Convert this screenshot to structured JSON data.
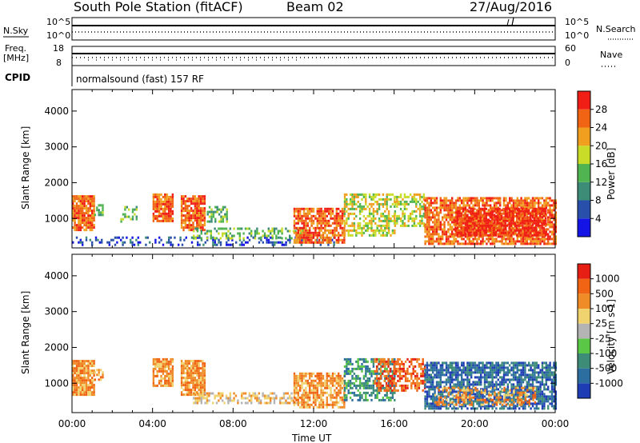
{
  "header": {
    "station": "South Pole Station (fitACF)",
    "beam": "Beam 02",
    "date": "27/Aug/2016"
  },
  "status_panels": {
    "nsky_label": "N.Sky",
    "nsky_ticks": [
      "10^5",
      "10^0"
    ],
    "nsearch_label": "N.Search",
    "nsearch_ticks": [
      "10^5",
      "10^0"
    ],
    "freq_label": "Freq.",
    "freq_unit": "[MHz]",
    "freq_ticks": [
      "18",
      "8"
    ],
    "nave_label": "Nave",
    "nave_ticks": [
      "60",
      "0"
    ],
    "cpid_label": "CPID",
    "cpid_text": "normalsound (fast) 157 RF"
  },
  "chart_data": [
    {
      "type": "heatmap",
      "name": "power",
      "ylabel": "Slant Range [km]",
      "y_ticks": [
        "1000",
        "2000",
        "3000",
        "4000"
      ],
      "ylim": [
        180,
        4600
      ],
      "xlim": [
        0,
        24
      ],
      "colorbar_title": "Power [dB]",
      "colorbar_ticks": [
        "4",
        "8",
        "12",
        "16",
        "20",
        "24",
        "28"
      ],
      "colors": [
        "#1414e6",
        "#2850aa",
        "#3c8c78",
        "#50b450",
        "#c8dc28",
        "#f0a01e",
        "#f06414",
        "#f01e14"
      ],
      "echo_regions": [
        {
          "t0": 0.0,
          "t1": 1.1,
          "r0": 700,
          "r1": 1650,
          "level": 6,
          "density": 0.9
        },
        {
          "t0": 1.1,
          "t1": 1.5,
          "r0": 1100,
          "r1": 1400,
          "level": 3,
          "density": 0.5
        },
        {
          "t0": 2.4,
          "t1": 3.2,
          "r0": 900,
          "r1": 1350,
          "level": 3,
          "density": 0.35
        },
        {
          "t0": 4.0,
          "t1": 5.0,
          "r0": 950,
          "r1": 1700,
          "level": 6,
          "density": 0.85
        },
        {
          "t0": 5.4,
          "t1": 6.6,
          "r0": 700,
          "r1": 1650,
          "level": 6,
          "density": 0.85
        },
        {
          "t0": 6.6,
          "t1": 7.7,
          "r0": 900,
          "r1": 1350,
          "level": 3,
          "density": 0.5
        },
        {
          "t0": 0.0,
          "t1": 13.0,
          "r0": 250,
          "r1": 500,
          "level": 1,
          "density": 0.3
        },
        {
          "t0": 6.0,
          "t1": 11.5,
          "r0": 450,
          "r1": 750,
          "level": 3,
          "density": 0.45
        },
        {
          "t0": 11.0,
          "t1": 13.5,
          "r0": 300,
          "r1": 1300,
          "level": 6,
          "density": 0.75
        },
        {
          "t0": 13.5,
          "t1": 16.0,
          "r0": 500,
          "r1": 1700,
          "level": 4,
          "density": 0.55
        },
        {
          "t0": 16.0,
          "t1": 17.5,
          "r0": 800,
          "r1": 1700,
          "level": 4,
          "density": 0.55
        },
        {
          "t0": 17.5,
          "t1": 24.0,
          "r0": 300,
          "r1": 1600,
          "level": 6,
          "density": 0.8
        },
        {
          "t0": 19.0,
          "t1": 23.5,
          "r0": 500,
          "r1": 1300,
          "level": 7,
          "density": 0.75
        }
      ]
    },
    {
      "type": "heatmap",
      "name": "velocity",
      "ylabel": "Slant Range [km]",
      "y_ticks": [
        "1000",
        "2000",
        "3000",
        "4000"
      ],
      "ylim": [
        180,
        4600
      ],
      "xlim": [
        0,
        24
      ],
      "x_ticks": [
        "00:00",
        "04:00",
        "08:00",
        "12:00",
        "16:00",
        "20:00",
        "00:00"
      ],
      "xlabel": "Time UT",
      "colorbar_title": "Velocity [m s-1]",
      "colorbar_ticks": [
        "1000",
        "500",
        "100",
        "25",
        "-25",
        "-100",
        "-500",
        "-1000"
      ],
      "colors": [
        "#1e3cb4",
        "#2d6ea0",
        "#3c8c78",
        "#5ac846",
        "#b4b4b4",
        "#f0d26e",
        "#f08c28",
        "#f06414",
        "#e61e14"
      ],
      "echo_regions": [
        {
          "t0": 0.0,
          "t1": 1.1,
          "r0": 700,
          "r1": 1650,
          "level": 6,
          "density": 0.9
        },
        {
          "t0": 1.1,
          "t1": 1.5,
          "r0": 1100,
          "r1": 1400,
          "level": 6,
          "density": 0.5
        },
        {
          "t0": 4.0,
          "t1": 5.0,
          "r0": 950,
          "r1": 1700,
          "level": 6,
          "density": 0.85
        },
        {
          "t0": 5.4,
          "t1": 6.6,
          "r0": 700,
          "r1": 1650,
          "level": 6,
          "density": 0.85
        },
        {
          "t0": 6.0,
          "t1": 11.5,
          "r0": 450,
          "r1": 750,
          "level": 5,
          "density": 0.5
        },
        {
          "t0": 11.0,
          "t1": 13.5,
          "r0": 300,
          "r1": 1300,
          "level": 6,
          "density": 0.75
        },
        {
          "t0": 13.5,
          "t1": 16.0,
          "r0": 500,
          "r1": 1700,
          "level": 2,
          "density": 0.55
        },
        {
          "t0": 15.0,
          "t1": 17.5,
          "r0": 800,
          "r1": 1700,
          "level": 7,
          "density": 0.6
        },
        {
          "t0": 17.5,
          "t1": 24.0,
          "r0": 300,
          "r1": 1600,
          "level": 1,
          "density": 0.75
        },
        {
          "t0": 18.0,
          "t1": 23.0,
          "r0": 400,
          "r1": 900,
          "level": 6,
          "density": 0.45
        }
      ]
    }
  ]
}
